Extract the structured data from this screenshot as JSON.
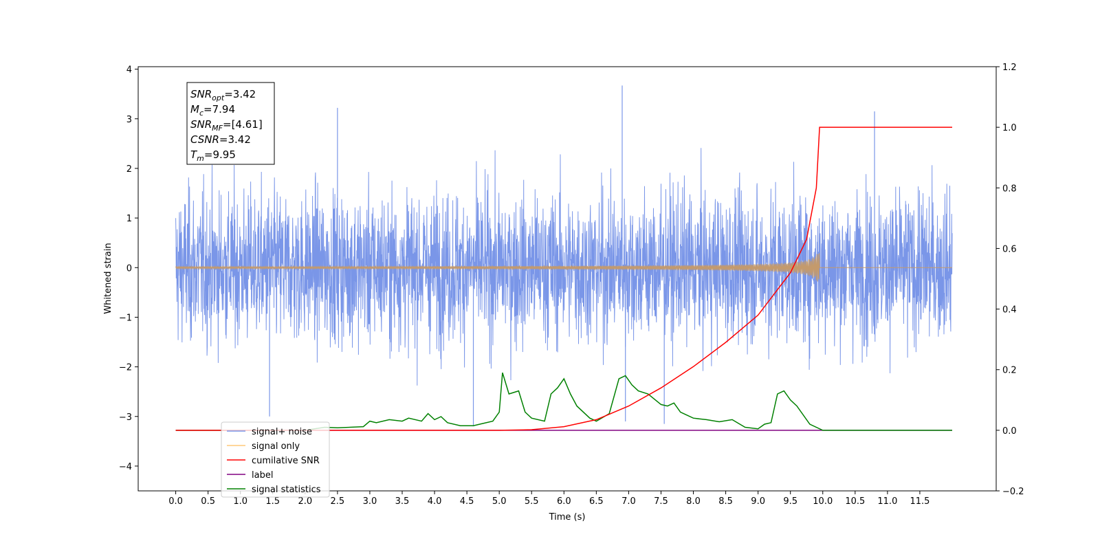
{
  "chart_data": {
    "type": "line",
    "xlabel": "Time (s)",
    "ylabel_left": "Whitened strain",
    "ylabel_right": "",
    "xlim": [
      -0.58,
      12.68
    ],
    "ylim_left": [
      -4.5,
      4.05
    ],
    "ylim_right": [
      -0.2,
      1.2
    ],
    "x_ticks": [
      "0.0",
      "0.5",
      "1.0",
      "1.5",
      "2.0",
      "2.5",
      "3.0",
      "3.5",
      "4.0",
      "4.5",
      "5.0",
      "5.5",
      "6.0",
      "6.5",
      "7.0",
      "7.5",
      "8.0",
      "8.5",
      "9.0",
      "9.5",
      "10.0",
      "10.5",
      "11.0",
      "11.5"
    ],
    "y_ticks_left": [
      "4",
      "3",
      "2",
      "1",
      "0",
      "−1",
      "−2",
      "−3",
      "−4"
    ],
    "y_ticks_right": [
      "1.2",
      "1.0",
      "0.8",
      "0.6",
      "0.4",
      "0.2",
      "0.0",
      "−0.2"
    ],
    "grid": false,
    "legend_position": "lower-left",
    "annotation": {
      "lines": [
        {
          "sym": "SNR",
          "sub": "opt",
          "val": "=3.42"
        },
        {
          "sym": "M",
          "sub": "c",
          "val": "=7.94"
        },
        {
          "sym": "SNR",
          "sub": "MF",
          "val": "=[4.61]"
        },
        {
          "sym": "CSNR",
          "sub": "",
          "val": "=3.42"
        },
        {
          "sym": "T",
          "sub": "m",
          "val": "=9.95"
        }
      ]
    },
    "series": [
      {
        "name": "signal+ noise",
        "color": "#7a96e8",
        "axis": "left",
        "x_range": [
          0.0,
          12.0
        ],
        "amplitude_std": 0.75,
        "min": -3.15,
        "max": 3.67
      },
      {
        "name": "signal only",
        "color": "#c49a6c",
        "axis": "left",
        "x_range": [
          0.0,
          12.0
        ],
        "peak_time": 9.95,
        "peak_amplitude": 0.38
      },
      {
        "name": "cumilative SNR",
        "color": "#ff0000",
        "axis": "right",
        "x": [
          0.0,
          5.0,
          5.5,
          6.0,
          6.5,
          7.0,
          7.5,
          8.0,
          8.5,
          9.0,
          9.5,
          9.75,
          9.9,
          9.95,
          10.0,
          12.0
        ],
        "y": [
          0.0,
          0.0,
          0.002,
          0.012,
          0.035,
          0.08,
          0.14,
          0.21,
          0.29,
          0.38,
          0.52,
          0.63,
          0.8,
          1.0,
          1.0,
          1.0
        ]
      },
      {
        "name": "label",
        "color": "#800080",
        "axis": "right",
        "x": [
          0.0,
          12.0
        ],
        "y": [
          0.0,
          0.0
        ]
      },
      {
        "name": "signal statistics",
        "color": "#008000",
        "axis": "right",
        "x": [
          0.0,
          2.0,
          2.3,
          2.5,
          2.9,
          3.0,
          3.1,
          3.3,
          3.5,
          3.6,
          3.8,
          3.9,
          4.0,
          4.1,
          4.2,
          4.4,
          4.6,
          4.7,
          4.9,
          5.0,
          5.05,
          5.15,
          5.3,
          5.4,
          5.5,
          5.7,
          5.8,
          5.9,
          6.0,
          6.1,
          6.2,
          6.4,
          6.5,
          6.7,
          6.85,
          6.95,
          7.05,
          7.15,
          7.3,
          7.5,
          7.6,
          7.7,
          7.8,
          7.9,
          8.0,
          8.2,
          8.4,
          8.6,
          8.8,
          9.0,
          9.1,
          9.2,
          9.3,
          9.4,
          9.5,
          9.6,
          9.8,
          10.0,
          12.0
        ],
        "y": [
          0.0,
          0.0,
          0.01,
          0.008,
          0.012,
          0.03,
          0.025,
          0.035,
          0.03,
          0.04,
          0.03,
          0.055,
          0.035,
          0.045,
          0.025,
          0.015,
          0.015,
          0.02,
          0.03,
          0.06,
          0.19,
          0.12,
          0.13,
          0.06,
          0.04,
          0.03,
          0.12,
          0.14,
          0.17,
          0.12,
          0.08,
          0.04,
          0.03,
          0.055,
          0.17,
          0.18,
          0.15,
          0.13,
          0.12,
          0.085,
          0.08,
          0.09,
          0.06,
          0.05,
          0.04,
          0.035,
          0.028,
          0.035,
          0.01,
          0.005,
          0.02,
          0.025,
          0.12,
          0.13,
          0.1,
          0.08,
          0.02,
          0.0,
          0.0
        ]
      }
    ]
  }
}
